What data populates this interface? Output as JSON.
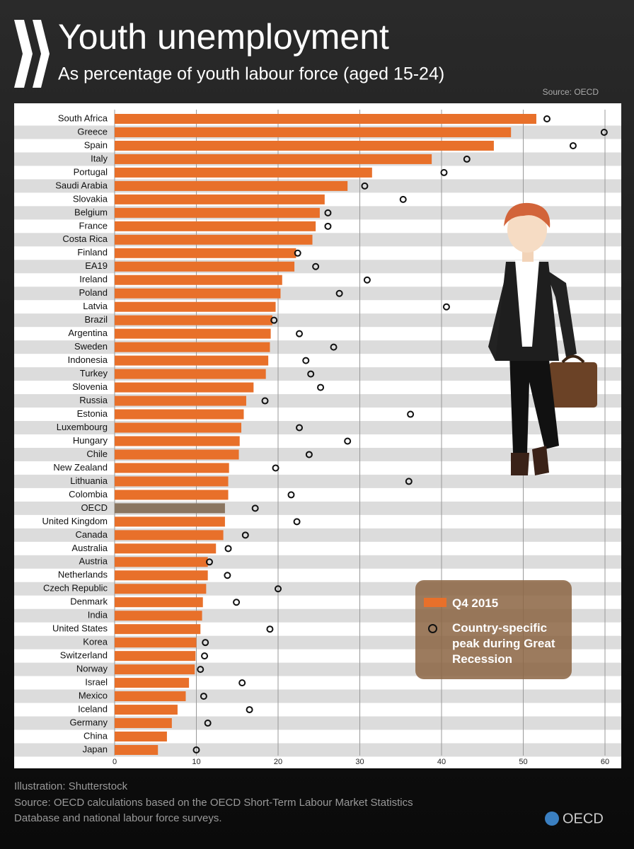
{
  "chart_data": {
    "type": "bar",
    "orientation": "horizontal",
    "title": "Youth unemployment",
    "subtitle": "As percentage of youth labour force (aged 15-24)",
    "source": "Source: OECD",
    "categories": [
      "South Africa",
      "Greece",
      "Spain",
      "Italy",
      "Portugal",
      "Saudi Arabia",
      "Slovakia",
      "Belgium",
      "France",
      "Costa Rica",
      "Finland",
      "EA19",
      "Ireland",
      "Poland",
      "Latvia",
      "Brazil",
      "Argentina",
      "Sweden",
      "Indonesia",
      "Turkey",
      "Slovenia",
      "Russia",
      "Estonia",
      "Luxembourg",
      "Hungary",
      "Chile",
      "New Zealand",
      "Lithuania",
      "Colombia",
      "OECD",
      "United Kingdom",
      "Canada",
      "Australia",
      "Austria",
      "Netherlands",
      "Czech Republic",
      "Denmark",
      "India",
      "United States",
      "Korea",
      "Switzerland",
      "Norway",
      "Israel",
      "Mexico",
      "Iceland",
      "Germany",
      "China",
      "Japan"
    ],
    "series": [
      {
        "name": "Q4 2015",
        "color": "#e8702a",
        "type": "bar",
        "values": [
          51.6,
          48.5,
          46.4,
          38.8,
          31.5,
          28.5,
          25.7,
          25.1,
          24.6,
          24.2,
          22.2,
          22.0,
          20.5,
          20.3,
          19.7,
          19.3,
          19.1,
          19.0,
          18.8,
          18.5,
          17.0,
          16.1,
          15.8,
          15.5,
          15.3,
          15.2,
          14.0,
          13.9,
          13.9,
          13.5,
          13.5,
          13.3,
          12.4,
          11.4,
          11.4,
          11.2,
          10.8,
          10.7,
          10.5,
          10.0,
          9.9,
          9.8,
          9.1,
          8.7,
          7.7,
          7.0,
          6.4,
          5.3
        ]
      },
      {
        "name": "Country-specific peak during Great Recession",
        "color": "#111111",
        "type": "marker",
        "values": [
          52.9,
          59.9,
          56.1,
          43.1,
          40.3,
          30.6,
          35.3,
          26.1,
          26.1,
          null,
          22.4,
          24.6,
          30.9,
          27.5,
          40.6,
          19.5,
          22.6,
          26.8,
          23.4,
          24.0,
          25.2,
          18.4,
          36.2,
          22.6,
          28.5,
          23.8,
          19.7,
          36.0,
          21.6,
          17.2,
          22.3,
          16.0,
          13.9,
          11.6,
          13.8,
          20.0,
          14.9,
          null,
          19.0,
          11.1,
          11.0,
          10.5,
          15.6,
          10.9,
          16.5,
          11.4,
          null,
          10.0
        ]
      }
    ],
    "highlight": {
      "category": "OECD",
      "color": "#8a7560"
    },
    "xlim": [
      0,
      60
    ],
    "xticks": [
      0,
      10,
      20,
      30,
      40,
      50,
      60
    ],
    "grid": true
  },
  "footer": [
    "Illustration: Shutterstock",
    "Source: OECD calculations based on the OECD Short-Term Labour Market Statistics",
    "Database and national labour force surveys."
  ],
  "logo_text": "OECD"
}
